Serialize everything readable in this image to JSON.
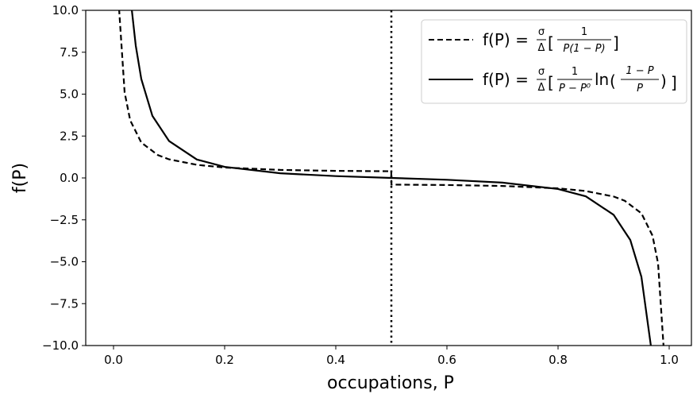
{
  "chart_data": {
    "type": "line",
    "title": "",
    "xlabel": "occupations, P",
    "ylabel": "f(P)",
    "xlim": [
      -0.05,
      1.04
    ],
    "ylim": [
      -10,
      10
    ],
    "xticks": [
      "0.0",
      "0.2",
      "0.4",
      "0.6",
      "0.8",
      "1.0"
    ],
    "yticks": [
      "10.0",
      "7.5",
      "5.0",
      "2.5",
      "0.0",
      "−2.5",
      "−5.0",
      "−7.5",
      "−10.0"
    ],
    "vertical_line": {
      "x": 0.5,
      "style": "dotted"
    },
    "legend_position": "top-right",
    "grid": false,
    "series": [
      {
        "name": "f(P) = σ/Δ [ 1 / (P(1 − P)) ]",
        "style": "dashed",
        "note_piecewise": "sign flips at P = 0.5",
        "x": [
          0.01,
          0.02,
          0.03,
          0.05,
          0.08,
          0.1,
          0.15,
          0.2,
          0.3,
          0.4,
          0.4999,
          0.5001,
          0.6,
          0.7,
          0.8,
          0.85,
          0.9,
          0.92,
          0.95,
          0.97,
          0.98,
          0.99
        ],
        "y": [
          10.1,
          5.1,
          3.44,
          2.11,
          1.36,
          1.11,
          0.78,
          0.62,
          0.48,
          0.42,
          0.4,
          -0.4,
          -0.42,
          -0.48,
          -0.62,
          -0.78,
          -1.11,
          -1.36,
          -2.11,
          -3.44,
          -5.1,
          -10.1
        ]
      },
      {
        "name": "f(P) = σ/Δ [ 1 / (P − P⁰) ln((1 − P)/P) ]",
        "style": "solid",
        "x": [
          0.033,
          0.04,
          0.05,
          0.07,
          0.1,
          0.15,
          0.2,
          0.3,
          0.4,
          0.5,
          0.6,
          0.7,
          0.8,
          0.85,
          0.9,
          0.93,
          0.95,
          0.967
        ],
        "y": [
          10.0,
          7.9,
          5.9,
          3.7,
          2.2,
          1.1,
          0.66,
          0.28,
          0.11,
          0.0,
          -0.11,
          -0.28,
          -0.66,
          -1.1,
          -2.2,
          -3.7,
          -5.9,
          -10.0
        ]
      }
    ]
  },
  "legend": {
    "entries": [
      {
        "lhs": "f(P) =",
        "pre": "σ",
        "den": "Δ",
        "num": "1",
        "body_den": "P(1 − P)",
        "tail": ""
      },
      {
        "lhs": "f(P) =",
        "pre": "σ",
        "den": "Δ",
        "num": "1",
        "body_den": "P − P⁰",
        "tail": "ln",
        "inner_num": "1 − P",
        "inner_den": "P"
      }
    ]
  }
}
